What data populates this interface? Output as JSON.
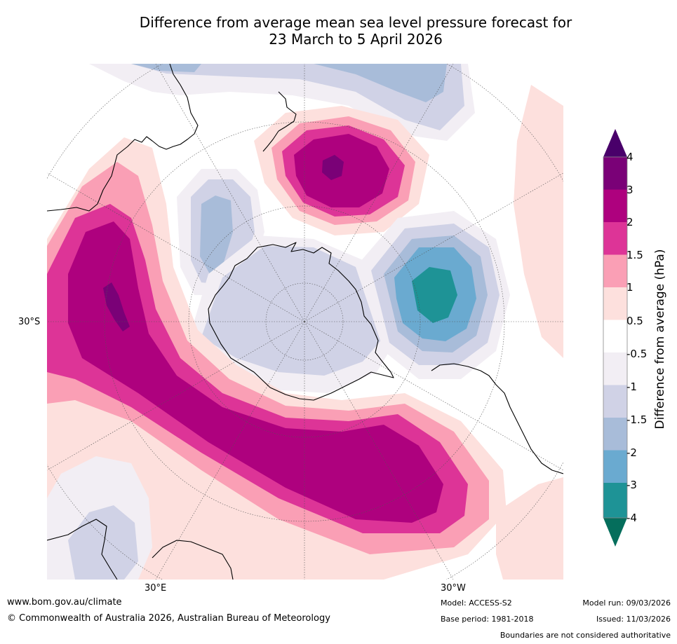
{
  "header": {
    "title_line1": "Difference from average mean sea level pressure forecast for",
    "title_line2": "23 March to 5 April 2026"
  },
  "map": {
    "lon_labels": [
      "30°E",
      "30°W"
    ],
    "lat_label": "30°S",
    "colors": {
      "neg4": "#056e5c",
      "neg3": "#1e9396",
      "neg2": "#6aaad0",
      "neg15": "#a8bcd9",
      "neg1": "#d0d2e6",
      "neg05": "#f2eef4",
      "zero": "#ffffff",
      "pos05": "#fde0dd",
      "pos1": "#fa9fb5",
      "pos15": "#dd3497",
      "pos2": "#ae017e",
      "pos3": "#7a0177",
      "pos4": "#49006a"
    }
  },
  "colorbar": {
    "title": "Difference from average (hPa)",
    "ticks": [
      "4",
      "3",
      "2",
      "1.5",
      "1",
      "0.5",
      "-0.5",
      "-1",
      "-1.5",
      "-2",
      "-3",
      "-4"
    ]
  },
  "footer": {
    "website": "www.bom.gov.au/climate",
    "copyright": "© Commonwealth of Australia 2026, Australian Bureau of Meteorology",
    "model": "Model: ACCESS-S2",
    "base_period": "Base period: 1981-2018",
    "model_run": "Model run: 09/03/2026",
    "issued": "Issued: 11/03/2026",
    "disclaimer": "Boundaries are not considered authoritative"
  }
}
